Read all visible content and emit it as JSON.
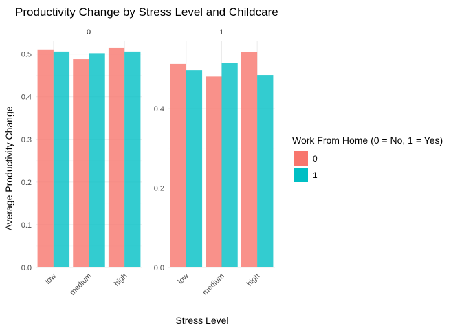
{
  "chart_data": {
    "type": "bar",
    "title": "Productivity Change by Stress Level and Childcare",
    "xlabel": "Stress Level",
    "ylabel": "Average Productivity Change",
    "categories": [
      "low",
      "medium",
      "high"
    ],
    "legend": {
      "title": "Work From Home (0 = No, 1 = Yes)",
      "position": "right",
      "entries": [
        {
          "label": "0",
          "color": "#F8766D"
        },
        {
          "label": "1",
          "color": "#00BFC4"
        }
      ]
    },
    "grid": true,
    "facets": [
      {
        "strip": "0",
        "ylim": [
          0,
          0.53
        ],
        "yticks": [
          "0.0",
          "0.1",
          "0.2",
          "0.3",
          "0.4",
          "0.5"
        ],
        "series": [
          {
            "name": "0",
            "values": [
              0.511,
              0.488,
              0.514
            ]
          },
          {
            "name": "1",
            "values": [
              0.506,
              0.502,
              0.506
            ]
          }
        ]
      },
      {
        "strip": "1",
        "ylim": [
          0,
          0.57
        ],
        "yticks": [
          "0.0",
          "0.2",
          "0.4"
        ],
        "series": [
          {
            "name": "0",
            "values": [
              0.513,
              0.481,
              0.543
            ]
          },
          {
            "name": "1",
            "values": [
              0.497,
              0.515,
              0.485
            ]
          }
        ]
      }
    ]
  }
}
